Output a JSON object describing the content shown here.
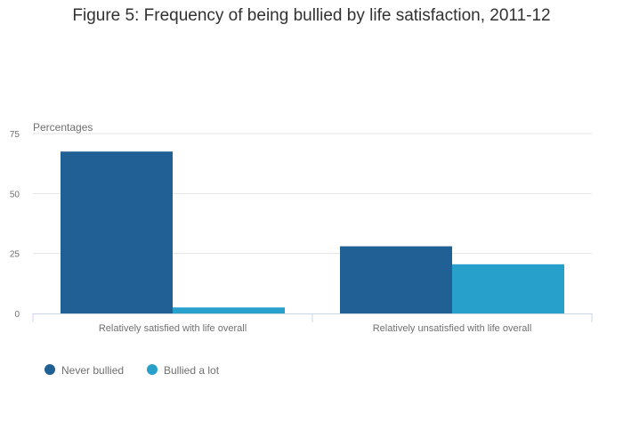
{
  "chart_data": {
    "type": "bar",
    "title": "Figure 5: Frequency of being bullied by life satisfaction, 2011-12",
    "ylabel": "Percentages",
    "xlabel": "",
    "categories": [
      "Relatively satisfied with life overall",
      "Relatively unsatisfied with life overall"
    ],
    "series": [
      {
        "name": "Never bullied",
        "color": "#206095",
        "values": [
          67.5,
          28
        ]
      },
      {
        "name": "Bullied a lot",
        "color": "#27a0cc",
        "values": [
          2.5,
          20.5
        ]
      }
    ],
    "ylim": [
      0,
      75
    ],
    "yticks": [
      0,
      25,
      50,
      75
    ],
    "ytick_labels": [
      "0",
      "25",
      "50",
      "75"
    ],
    "grid": true,
    "legend_position": "bottom-left"
  }
}
